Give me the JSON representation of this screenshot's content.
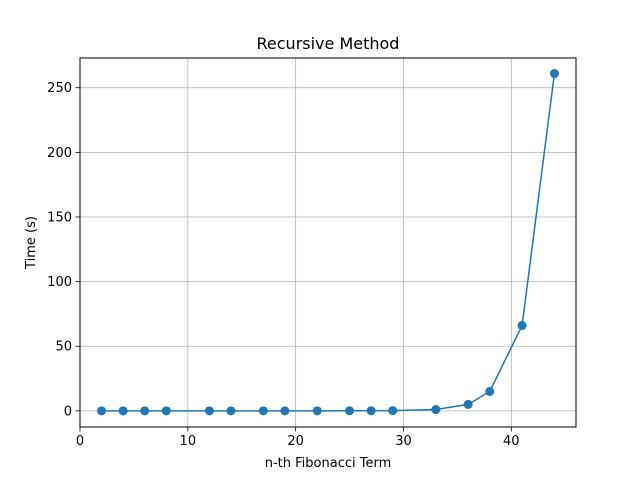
{
  "chart_data": {
    "type": "line",
    "title": "Recursive Method",
    "xlabel": "n-th Fibonacci Term",
    "ylabel": "Time (s)",
    "xlim": [
      0,
      46
    ],
    "ylim": [
      -12.5,
      273
    ],
    "xticks": [
      0,
      10,
      20,
      30,
      40
    ],
    "yticks": [
      0,
      50,
      100,
      150,
      200,
      250
    ],
    "grid": true,
    "marker": "circle",
    "color": "#1f77b4",
    "series": [
      {
        "x": [
          2,
          4,
          6,
          8,
          12,
          14,
          17,
          19,
          22,
          25,
          27,
          29,
          33,
          36,
          38,
          41,
          44
        ],
        "values": [
          0,
          0,
          0,
          0,
          0,
          0,
          0,
          0,
          0,
          0.03,
          0.08,
          0.2,
          1,
          5,
          15,
          66,
          261
        ]
      }
    ]
  }
}
